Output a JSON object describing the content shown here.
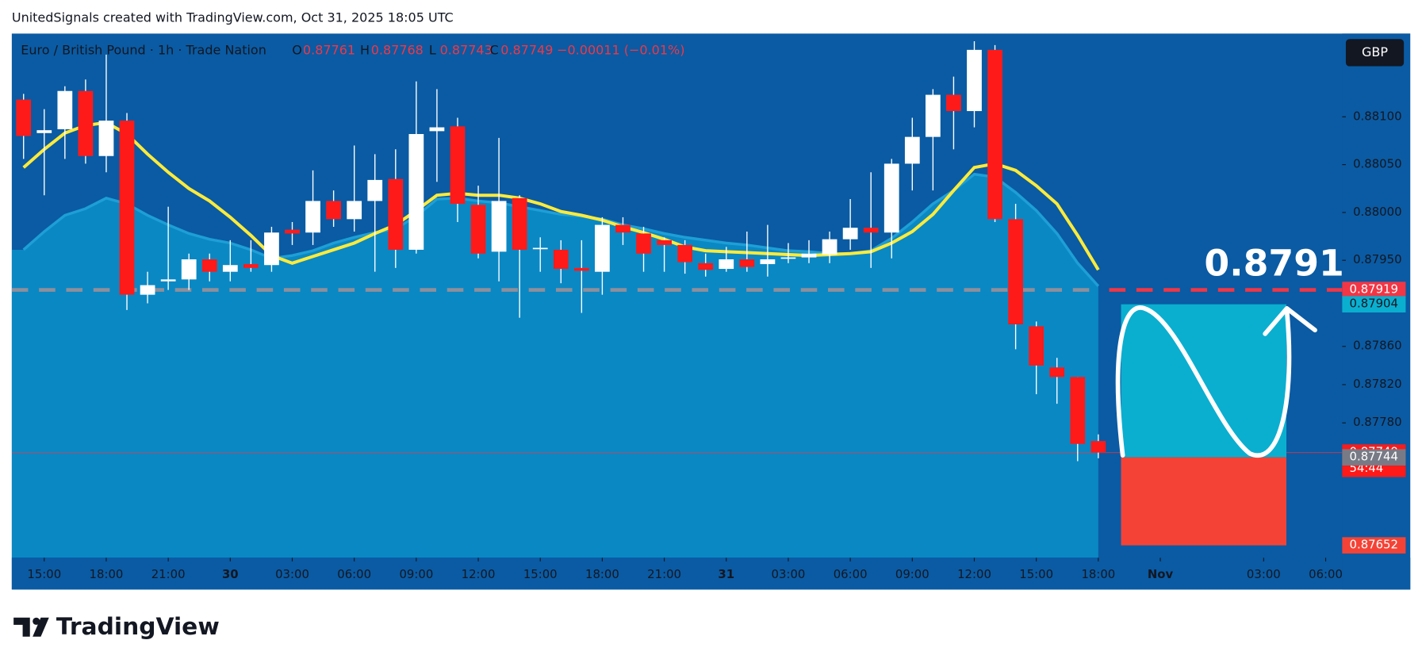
{
  "header": {
    "credit": "UnitedSignals created with TradingView.com, Oct 31, 2025 18:05 UTC",
    "brand": "TradingView"
  },
  "chart_data": {
    "type": "candlestick",
    "title": "Euro / British Pound · 1h · Trade Nation",
    "legend_labels": [
      "O",
      "H",
      "L",
      "C"
    ],
    "change": "−0.00011 (−0.01%)",
    "currency": "GBP",
    "countdown": "54:44",
    "annotation": "0.8791",
    "up_color": "#ffffff",
    "down_color": "#ff1a1a",
    "wick_color": "#ffffff",
    "open": [
      0.88118,
      0.88083,
      0.88087,
      0.88127,
      0.88059,
      0.88096,
      0.87914,
      0.87928,
      0.8793,
      0.87951,
      0.87938,
      0.87946,
      0.87945,
      0.87982,
      0.87979,
      0.88012,
      0.87993,
      0.88012,
      0.88035,
      0.87961,
      0.88085,
      0.8809,
      0.88008,
      0.87959,
      0.88015,
      0.87962,
      0.87961,
      0.87942,
      0.87938,
      0.87987,
      0.87978,
      0.87971,
      0.87966,
      0.87947,
      0.87941,
      0.87951,
      0.87946,
      0.87952,
      0.87953,
      0.87956,
      0.87972,
      0.87984,
      0.87979,
      0.88051,
      0.88079,
      0.88123,
      0.88106,
      0.8817,
      0.87993,
      0.87881,
      0.87838,
      0.87828,
      0.87761
    ],
    "high": [
      0.88124,
      0.88108,
      0.88132,
      0.88139,
      0.88165,
      0.88104,
      0.87938,
      0.88006,
      0.87957,
      0.87957,
      0.87971,
      0.87971,
      0.87985,
      0.8799,
      0.88044,
      0.88023,
      0.8807,
      0.88061,
      0.88066,
      0.88137,
      0.88129,
      0.88099,
      0.88028,
      0.88078,
      0.88018,
      0.87974,
      0.87971,
      0.87971,
      0.87995,
      0.87995,
      0.87985,
      0.87974,
      0.87971,
      0.87957,
      0.87964,
      0.8798,
      0.87987,
      0.87968,
      0.87971,
      0.8798,
      0.88014,
      0.88042,
      0.88056,
      0.88099,
      0.88129,
      0.88142,
      0.88179,
      0.88175,
      0.88009,
      0.87886,
      0.87848,
      0.87828,
      0.87768
    ],
    "low": [
      0.88056,
      0.88018,
      0.88056,
      0.88051,
      0.88042,
      0.87898,
      0.87905,
      0.87919,
      0.87919,
      0.87928,
      0.87928,
      0.87938,
      0.87938,
      0.87966,
      0.87966,
      0.87985,
      0.8798,
      0.87938,
      0.87942,
      0.87957,
      0.88032,
      0.8799,
      0.87952,
      0.87928,
      0.8789,
      0.87938,
      0.87926,
      0.87895,
      0.87914,
      0.87966,
      0.87938,
      0.87938,
      0.87936,
      0.87933,
      0.87938,
      0.87938,
      0.87933,
      0.87947,
      0.87947,
      0.87947,
      0.87961,
      0.87942,
      0.87952,
      0.88023,
      0.88023,
      0.88066,
      0.88089,
      0.8799,
      0.87857,
      0.8781,
      0.878,
      0.8774,
      0.87743
    ],
    "close": [
      0.8808,
      0.88086,
      0.88127,
      0.88059,
      0.88096,
      0.87914,
      0.87924,
      0.8793,
      0.87951,
      0.87938,
      0.87945,
      0.87942,
      0.87979,
      0.87978,
      0.88012,
      0.87993,
      0.88012,
      0.88034,
      0.87961,
      0.88082,
      0.88089,
      0.88009,
      0.87957,
      0.88012,
      0.87961,
      0.87963,
      0.87941,
      0.87939,
      0.87987,
      0.87979,
      0.87957,
      0.87966,
      0.87948,
      0.8794,
      0.87951,
      0.87943,
      0.87951,
      0.87953,
      0.87957,
      0.87972,
      0.87984,
      0.87979,
      0.88051,
      0.88079,
      0.88123,
      0.88106,
      0.8817,
      0.87993,
      0.87883,
      0.8784,
      0.87828,
      0.87758,
      0.87749
    ],
    "overlays": [
      {
        "color": "#1e9fd6",
        "fill": "#0a88c4",
        "values": [
          0.87961,
          0.8798,
          0.87997,
          0.88004,
          0.88015,
          0.88009,
          0.87997,
          0.87987,
          0.87978,
          0.87972,
          0.87968,
          0.87961,
          0.87952,
          0.87955,
          0.8796,
          0.87968,
          0.87974,
          0.87979,
          0.87983,
          0.87996,
          0.88014,
          0.88015,
          0.88012,
          0.8801,
          0.88006,
          0.88002,
          0.87998,
          0.87996,
          0.87993,
          0.87987,
          0.87983,
          0.87978,
          0.87974,
          0.87971,
          0.87968,
          0.87966,
          0.87963,
          0.8796,
          0.87959,
          0.87957,
          0.87957,
          0.8796,
          0.87973,
          0.8799,
          0.88009,
          0.88023,
          0.8804,
          0.88037,
          0.88021,
          0.88002,
          0.87978,
          0.87947,
          0.87923
        ]
      },
      {
        "color": "#ffeb3b",
        "values": [
          0.88047,
          0.88066,
          0.88083,
          0.88091,
          0.88094,
          0.88082,
          0.88061,
          0.88042,
          0.88025,
          0.88012,
          0.87995,
          0.87976,
          0.87955,
          0.87947,
          0.87954,
          0.87961,
          0.87968,
          0.87978,
          0.87987,
          0.88002,
          0.88018,
          0.8802,
          0.88018,
          0.88018,
          0.88015,
          0.88009,
          0.88001,
          0.87997,
          0.87992,
          0.87985,
          0.87979,
          0.87972,
          0.87964,
          0.8796,
          0.87959,
          0.87958,
          0.87957,
          0.87956,
          0.87955,
          0.87956,
          0.87957,
          0.87959,
          0.87968,
          0.8798,
          0.87998,
          0.88023,
          0.88047,
          0.88051,
          0.88044,
          0.88028,
          0.88009,
          0.87976,
          0.8794
        ]
      }
    ],
    "xlim": [
      -0.57,
      63.8
    ],
    "xticks": [
      {
        "value": 1,
        "label": "15:00"
      },
      {
        "value": 4,
        "label": "18:00"
      },
      {
        "value": 7,
        "label": "21:00"
      },
      {
        "value": 10,
        "label": "30"
      },
      {
        "value": 13,
        "label": "03:00"
      },
      {
        "value": 16,
        "label": "06:00"
      },
      {
        "value": 19,
        "label": "09:00"
      },
      {
        "value": 22,
        "label": "12:00"
      },
      {
        "value": 25,
        "label": "15:00"
      },
      {
        "value": 28,
        "label": "18:00"
      },
      {
        "value": 31,
        "label": "21:00"
      },
      {
        "value": 34,
        "label": "31"
      },
      {
        "value": 37,
        "label": "03:00"
      },
      {
        "value": 40,
        "label": "06:00"
      },
      {
        "value": 43,
        "label": "09:00"
      },
      {
        "value": 46,
        "label": "12:00"
      },
      {
        "value": 49,
        "label": "15:00"
      },
      {
        "value": 52,
        "label": "18:00"
      },
      {
        "value": 55,
        "label": "Nov"
      },
      {
        "value": 60,
        "label": "03:00"
      },
      {
        "value": 63,
        "label": "06:00"
      }
    ],
    "ylim": [
      0.87639,
      0.88187
    ],
    "yticks": [
      {
        "value": 0.881,
        "label": "0.88100"
      },
      {
        "value": 0.8805,
        "label": "0.88050"
      },
      {
        "value": 0.88,
        "label": "0.88000"
      },
      {
        "value": 0.8795,
        "label": "0.87950"
      },
      {
        "value": 0.8786,
        "label": "0.87860"
      },
      {
        "value": 0.8782,
        "label": "0.87820"
      },
      {
        "value": 0.8778,
        "label": "0.87780"
      }
    ],
    "dashed_line": {
      "value": 0.87919,
      "color": "#f23645"
    },
    "position": {
      "from": 53.1,
      "to": 61.1,
      "target": 0.87904,
      "entry": 0.87744,
      "stop": 0.87652,
      "target_color": "#0aafd0",
      "stop_color": "#f44336"
    }
  }
}
